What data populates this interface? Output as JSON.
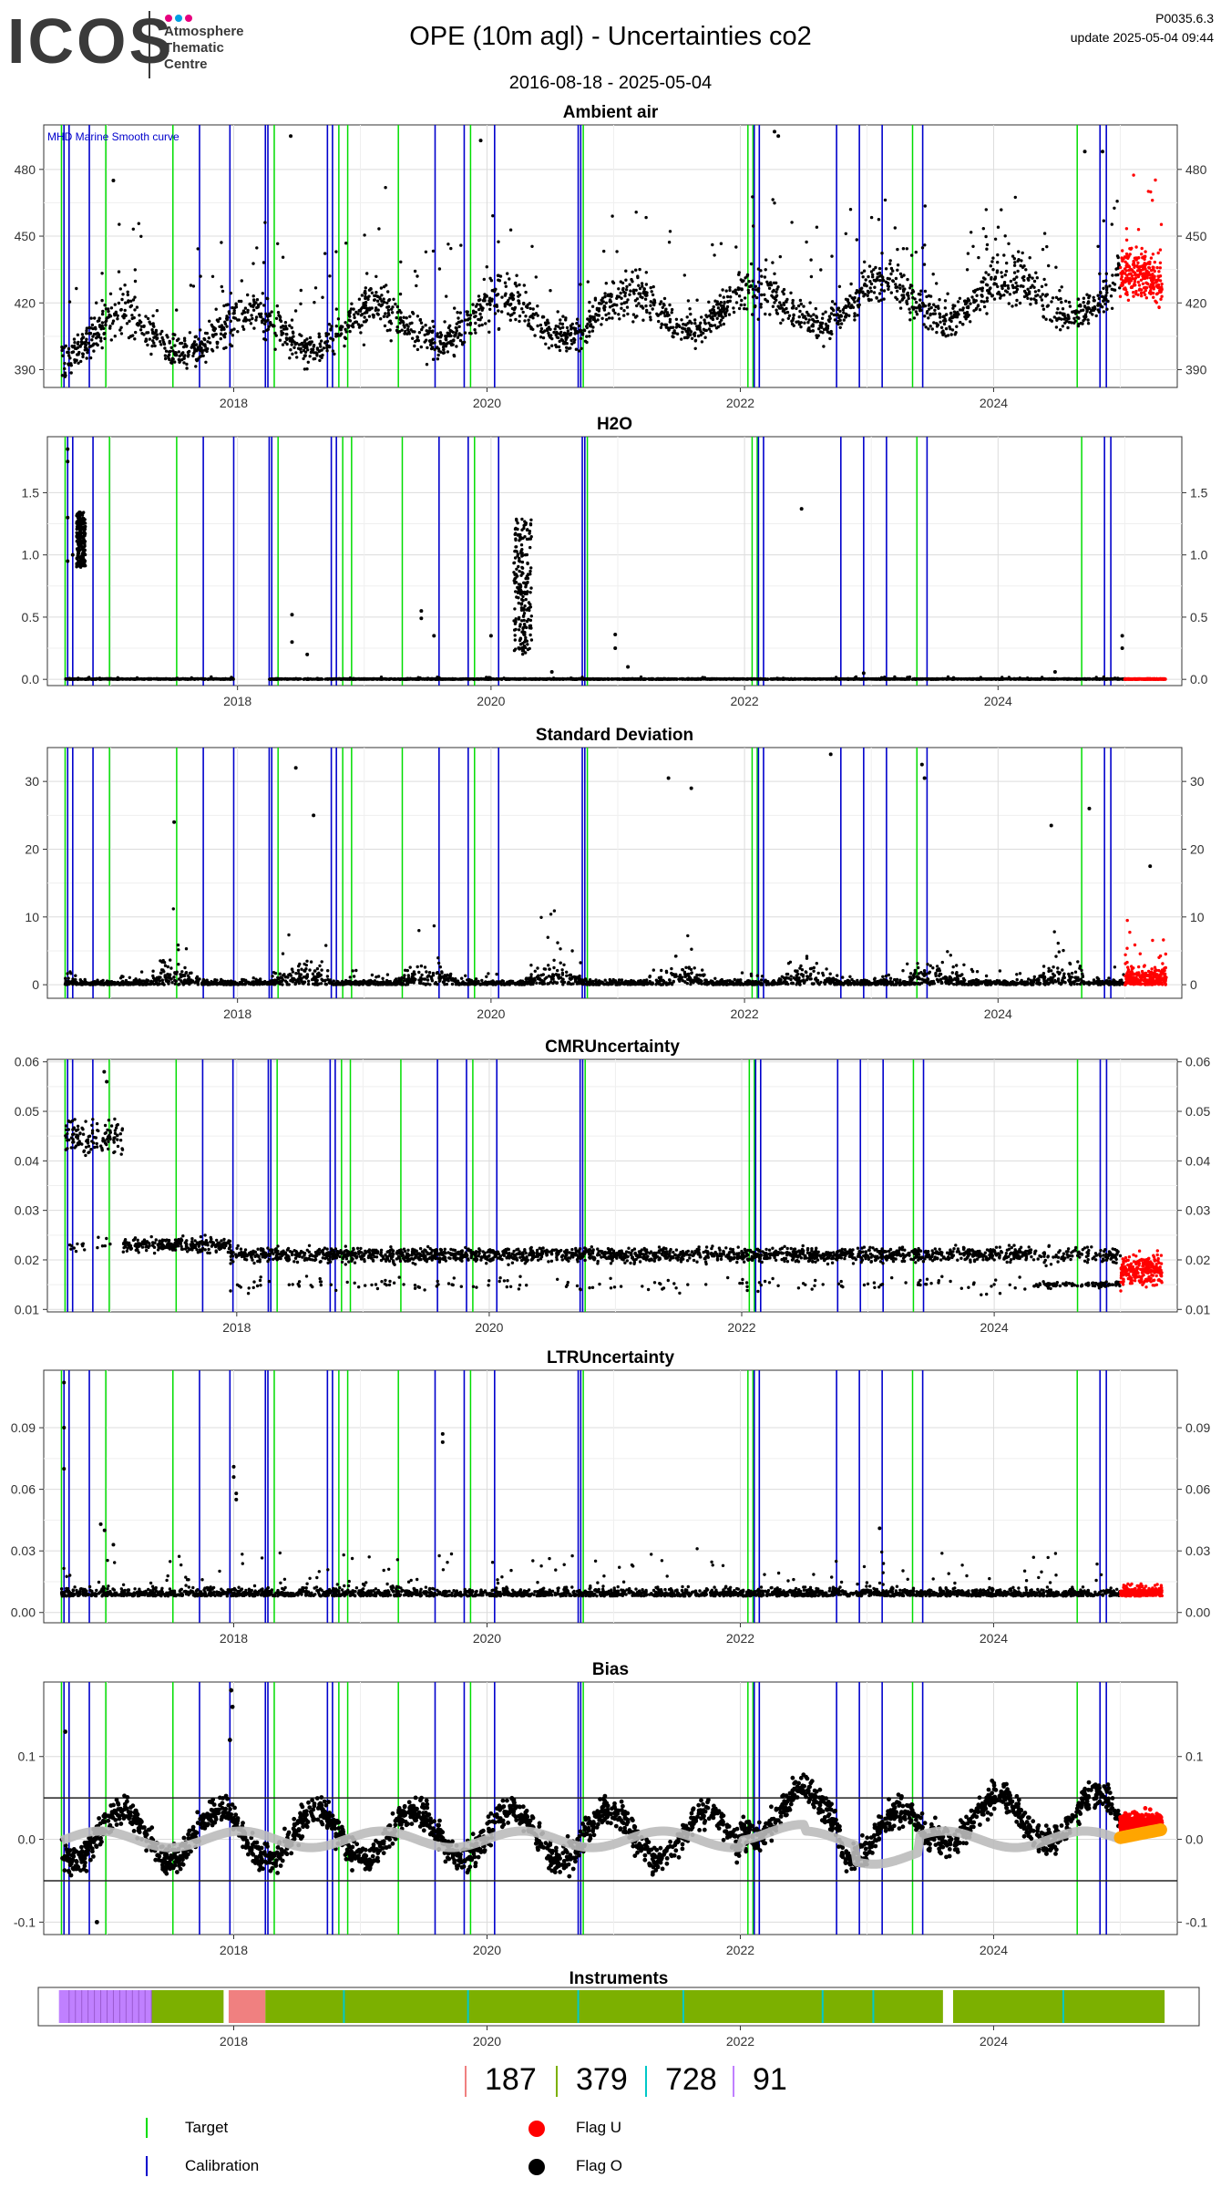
{
  "header": {
    "logo_text": "ICOS",
    "logo_lines": [
      "Atmosphere",
      "Thematic",
      "Centre"
    ],
    "logo_dot_colors": [
      "#e6007e",
      "#009fe3",
      "#e6007e"
    ],
    "title": "OPE  (10m agl) - Uncertainties co2",
    "date_range": "2016-08-18 - 2025-05-04",
    "code": "P0035.6.3",
    "update": "update  2025-05-04 09:44"
  },
  "colors": {
    "target": "#00dd00",
    "calibration": "#0000cc",
    "flag_u": "#ff0000",
    "flag_o": "#000000",
    "smooth": "#bbbbbb",
    "smooth_recent": "#ffa500",
    "inst_187": "#f08080",
    "inst_379": "#7cb000",
    "inst_728": "#00c8c8",
    "inst_91": "#c080ff"
  },
  "time_axis": {
    "start": 2016.5,
    "end": 2025.45,
    "ticks": [
      {
        "t": 2018,
        "label": "2018"
      },
      {
        "t": 2020,
        "label": "2020"
      },
      {
        "t": 2022,
        "label": "2022"
      },
      {
        "t": 2024,
        "label": "2024"
      }
    ]
  },
  "events": {
    "calibration": [
      2016.66,
      2016.7,
      2016.86,
      2017.73,
      2017.97,
      2018.25,
      2018.27,
      2018.74,
      2018.78,
      2019.59,
      2019.82,
      2020.06,
      2020.72,
      2020.74,
      2022.11,
      2022.15,
      2022.76,
      2022.94,
      2023.12,
      2023.44,
      2024.84,
      2024.89
    ],
    "target": [
      2016.64,
      2016.99,
      2017.52,
      2018.32,
      2018.83,
      2018.9,
      2019.3,
      2019.87,
      2020.76,
      2022.06,
      2022.1,
      2023.36,
      2024.66
    ]
  },
  "chart_data": [
    {
      "type": "scatter",
      "title": "Ambient air",
      "annotation": "MHD Marine Smooth curve",
      "ylim": [
        382,
        500
      ],
      "y_ticks": [
        390,
        420,
        450,
        480
      ],
      "y_tick_labels": [
        "390",
        "420",
        "450",
        "480"
      ],
      "series": [
        {
          "name": "Flag O",
          "flag": "O",
          "profile": "co2",
          "x_range": [
            2016.64,
            2025.0
          ]
        },
        {
          "name": "Flag U",
          "flag": "U",
          "profile": "co2",
          "x_range": [
            2025.0,
            2025.33
          ]
        }
      ],
      "outliers": [
        [
          2018.45,
          495
        ],
        [
          2019.95,
          493
        ],
        [
          2022.27,
          497
        ],
        [
          2022.3,
          495
        ],
        [
          2024.72,
          488
        ],
        [
          2024.86,
          488
        ],
        [
          2017.05,
          475
        ]
      ]
    },
    {
      "type": "scatter",
      "title": "H2O",
      "ylim": [
        -0.05,
        1.95
      ],
      "y_ticks": [
        0.0,
        0.5,
        1.0,
        1.5
      ],
      "y_tick_labels": [
        "0.0",
        "0.5",
        "1.0",
        "1.5"
      ],
      "series": [
        {
          "name": "Flag O",
          "flag": "O",
          "profile": "h2o",
          "x_range": [
            2016.64,
            2025.0
          ]
        },
        {
          "name": "Flag U",
          "flag": "U",
          "profile": "h2o_u",
          "x_range": [
            2025.0,
            2025.33
          ]
        }
      ],
      "outliers": [
        [
          2016.66,
          1.85
        ],
        [
          2016.66,
          1.75
        ],
        [
          2016.66,
          1.3
        ],
        [
          2016.66,
          0.95
        ],
        [
          2016.7,
          1.0
        ],
        [
          2018.43,
          0.52
        ],
        [
          2018.43,
          0.3
        ],
        [
          2018.55,
          0.2
        ],
        [
          2019.45,
          0.55
        ],
        [
          2019.45,
          0.49
        ],
        [
          2019.55,
          0.35
        ],
        [
          2020.0,
          0.35
        ],
        [
          2020.48,
          0.06
        ],
        [
          2020.98,
          0.36
        ],
        [
          2020.98,
          0.25
        ],
        [
          2021.08,
          0.1
        ],
        [
          2022.45,
          1.37
        ],
        [
          2022.94,
          0.05
        ],
        [
          2024.45,
          0.06
        ],
        [
          2024.98,
          0.35
        ],
        [
          2024.98,
          0.25
        ]
      ],
      "cluster": {
        "x_range": [
          2020.18,
          2020.32
        ],
        "y_range": [
          0.2,
          1.3
        ]
      },
      "cluster2": {
        "x_range": [
          2016.73,
          2016.8
        ],
        "y_range": [
          0.9,
          1.35
        ]
      }
    },
    {
      "type": "scatter",
      "title": "Standard Deviation",
      "ylim": [
        -2,
        35
      ],
      "y_ticks": [
        0,
        10,
        20,
        30
      ],
      "y_tick_labels": [
        "0",
        "10",
        "20",
        "30"
      ],
      "series": [
        {
          "name": "Flag O",
          "flag": "O",
          "profile": "sd",
          "x_range": [
            2016.64,
            2025.0
          ]
        },
        {
          "name": "Flag U",
          "flag": "U",
          "profile": "sd_u",
          "x_range": [
            2025.0,
            2025.33
          ]
        }
      ],
      "outliers": [
        [
          2018.46,
          32
        ],
        [
          2018.6,
          25
        ],
        [
          2021.4,
          30.5
        ],
        [
          2021.58,
          29
        ],
        [
          2022.68,
          34
        ],
        [
          2023.4,
          32.5
        ],
        [
          2023.42,
          30.5
        ],
        [
          2024.72,
          26
        ],
        [
          2024.42,
          23.5
        ],
        [
          2017.5,
          24
        ],
        [
          2025.2,
          17.5
        ]
      ]
    },
    {
      "type": "scatter",
      "title": "CMRUncertainty",
      "ylim": [
        0.0095,
        0.0605
      ],
      "y_ticks": [
        0.01,
        0.02,
        0.03,
        0.04,
        0.05,
        0.06
      ],
      "y_tick_labels": [
        "0.01",
        "0.02",
        "0.03",
        "0.04",
        "0.05",
        "0.06"
      ],
      "series": [
        {
          "name": "Flag O",
          "flag": "O",
          "profile": "cmr",
          "x_range": [
            2016.64,
            2025.0
          ]
        },
        {
          "name": "Flag U",
          "flag": "U",
          "profile": "cmr_u",
          "x_range": [
            2025.0,
            2025.33
          ]
        }
      ],
      "outliers": [
        [
          2016.95,
          0.058
        ],
        [
          2016.97,
          0.056
        ]
      ]
    },
    {
      "type": "scatter",
      "title": "LTRUncertainty",
      "ylim": [
        -0.005,
        0.118
      ],
      "y_ticks": [
        0.0,
        0.03,
        0.06,
        0.09
      ],
      "y_tick_labels": [
        "0.00",
        "0.03",
        "0.06",
        "0.09"
      ],
      "series": [
        {
          "name": "Flag O",
          "flag": "O",
          "profile": "ltr",
          "x_range": [
            2016.64,
            2025.0
          ]
        },
        {
          "name": "Flag U",
          "flag": "U",
          "profile": "ltr_u",
          "x_range": [
            2025.0,
            2025.33
          ]
        }
      ],
      "outliers": [
        [
          2016.66,
          0.112
        ],
        [
          2016.66,
          0.09
        ],
        [
          2016.66,
          0.07
        ],
        [
          2016.95,
          0.043
        ],
        [
          2016.98,
          0.04
        ],
        [
          2017.05,
          0.033
        ],
        [
          2018.0,
          0.071
        ],
        [
          2018.0,
          0.066
        ],
        [
          2018.02,
          0.058
        ],
        [
          2018.02,
          0.055
        ],
        [
          2019.65,
          0.087
        ],
        [
          2019.65,
          0.083
        ],
        [
          2023.1,
          0.041
        ]
      ]
    },
    {
      "type": "line",
      "title": "Bias",
      "ylim": [
        -0.115,
        0.19
      ],
      "y_ticks": [
        -0.1,
        0.0,
        0.1
      ],
      "y_tick_labels": [
        "-0.1",
        "0.0",
        "0.1"
      ],
      "hlines": [
        0.05,
        -0.05
      ],
      "series": [
        {
          "name": "Flag O",
          "flag": "O",
          "profile": "bias",
          "x_range": [
            2016.64,
            2025.0
          ]
        },
        {
          "name": "Flag U",
          "flag": "U",
          "profile": "bias_u",
          "x_range": [
            2025.0,
            2025.33
          ]
        }
      ],
      "spikes": [
        [
          2017.98,
          0.18
        ],
        [
          2017.99,
          0.16
        ],
        [
          2017.97,
          0.12
        ],
        [
          2016.67,
          0.13
        ],
        [
          2016.92,
          -0.1
        ]
      ]
    },
    {
      "type": "bar",
      "title": "Instruments",
      "segments": [
        {
          "instrument": "91",
          "from": 2016.62,
          "to": 2017.35
        },
        {
          "instrument": "379",
          "from": 2017.35,
          "to": 2017.92
        },
        {
          "instrument": "187",
          "from": 2017.96,
          "to": 2018.25
        },
        {
          "instrument": "379",
          "from": 2018.25,
          "to": 2023.6
        },
        {
          "instrument": "379",
          "from": 2023.68,
          "to": 2025.35
        }
      ],
      "thin_marks_728": [
        2018.87,
        2019.85,
        2020.72,
        2021.55,
        2022.65,
        2023.05,
        2024.55
      ]
    }
  ],
  "instrument_legend": [
    {
      "id": "187",
      "label": "187",
      "color_key": "inst_187"
    },
    {
      "id": "379",
      "label": "379",
      "color_key": "inst_379"
    },
    {
      "id": "728",
      "label": "728",
      "color_key": "inst_728"
    },
    {
      "id": "91",
      "label": "91",
      "color_key": "inst_91"
    }
  ],
  "legend": {
    "target": "Target",
    "calibration": "Calibration",
    "flag_u": "Flag U",
    "flag_o": "Flag O"
  }
}
